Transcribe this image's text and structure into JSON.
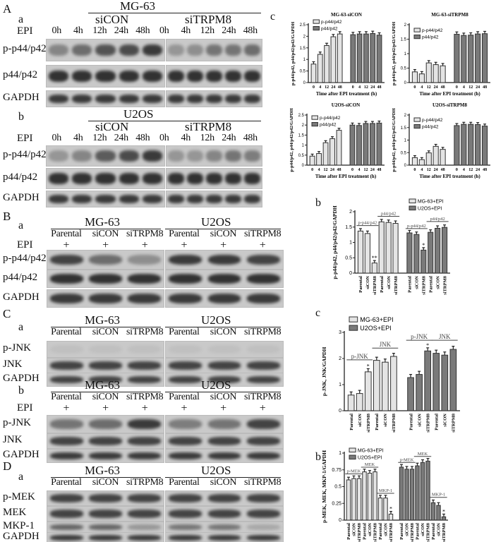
{
  "panels": {
    "A": {
      "letter": "A",
      "sub_a": "a",
      "sub_b": "b",
      "sub_c": "c",
      "a": {
        "cell": "MG-63",
        "group1": "siCON",
        "group2": "siTRPM8",
        "treat": "EPI",
        "times": [
          "0h",
          "4h",
          "12h",
          "24h",
          "48h",
          "0h",
          "4h",
          "12h",
          "24h",
          "48h"
        ],
        "rows": [
          "p-p44/p42",
          "p44/p42",
          "GAPDH"
        ]
      },
      "b": {
        "cell": "U2OS",
        "group1": "siCON",
        "group2": "siTRPM8",
        "treat": "EPI",
        "times": [
          "0h",
          "4h",
          "12h",
          "24h",
          "48h",
          "0h",
          "4h",
          "12h",
          "24h",
          "48h"
        ],
        "rows": [
          "p-p44/p42",
          "p44/p42",
          "GAPDH"
        ]
      }
    },
    "B": {
      "letter": "B",
      "sub_a": "a",
      "sub_b": "b",
      "cells": [
        "MG-63",
        "U2OS"
      ],
      "lanes": [
        "Parental",
        "siCON",
        "siTRPM8",
        "Parental",
        "siCON",
        "siTRPM8"
      ],
      "treat": "EPI",
      "plus": [
        "+",
        "+",
        "+",
        "+",
        "+",
        "+"
      ],
      "rows": [
        "p-p44/p42",
        "p44/p42",
        "GAPDH"
      ]
    },
    "C": {
      "letter": "C",
      "sub_a": "a",
      "sub_b": "b",
      "sub_c": "c",
      "cells": [
        "MG-63",
        "U2OS"
      ],
      "lanes": [
        "Parental",
        "siCON",
        "siTRPM8",
        "Parental",
        "siCON",
        "siTRPM8"
      ],
      "treat": "EPI",
      "plus": [
        "+",
        "+",
        "+",
        "+",
        "+",
        "+"
      ],
      "rows": [
        "p-JNK",
        "JNK",
        "GAPDH"
      ]
    },
    "D": {
      "letter": "D",
      "sub_a": "a",
      "sub_b": "b",
      "cells": [
        "MG-63",
        "U2OS"
      ],
      "lanes": [
        "Parental",
        "siCON",
        "siTRPM8",
        "Parental",
        "siCON",
        "siTRPM8"
      ],
      "rows": [
        "p-MEK",
        "MEK",
        "MKP-1",
        "GAPDH"
      ]
    }
  },
  "chart_data": [
    {
      "id": "Ac1",
      "type": "bar",
      "title": "MG-63-siCON",
      "xlabel": "Time after EPI treatment (h)",
      "ylabel": "p-p44/p42, p44/p42/p42/GAPDH",
      "ylim": [
        0,
        2.5
      ],
      "yticks": [
        0,
        0.5,
        1.0,
        1.5,
        2.0,
        2.5
      ],
      "categories": [
        "0",
        "4",
        "12",
        "24",
        "48"
      ],
      "legend_position": "top-left",
      "series": [
        {
          "name": "p-p44/p42",
          "color": "#e4e4e4",
          "values": [
            0.8,
            1.22,
            1.6,
            1.98,
            2.1
          ]
        },
        {
          "name": "p44/p42",
          "color": "#7a7a7a",
          "values": [
            2.07,
            2.1,
            2.1,
            2.12,
            2.05
          ]
        }
      ]
    },
    {
      "id": "Ac2",
      "type": "bar",
      "title": "MG-63-siTRPM8",
      "xlabel": "Time after EPI treatment (h)",
      "ylabel": "p-p44/p42, p44/p42/p42/GAPDH",
      "ylim": [
        0,
        2.0
      ],
      "yticks": [
        0,
        0.5,
        1.0,
        1.5,
        2.0
      ],
      "categories": [
        "0",
        "4",
        "12",
        "24",
        "48"
      ],
      "legend_position": "top-left",
      "series": [
        {
          "name": "p-p44/p42",
          "color": "#e4e4e4",
          "values": [
            0.37,
            0.3,
            0.68,
            0.62,
            0.58
          ]
        },
        {
          "name": "p44/p42",
          "color": "#7a7a7a",
          "values": [
            1.67,
            1.63,
            1.64,
            1.68,
            1.69
          ]
        }
      ]
    },
    {
      "id": "Ac3",
      "type": "bar",
      "title": "U2OS-siCON",
      "xlabel": "Time after EPI treatment (h)",
      "ylabel": "p-p44/p42, p44/p42/p42/GAPDH",
      "ylim": [
        0,
        2.5
      ],
      "yticks": [
        0,
        0.5,
        1.0,
        1.5,
        2.0,
        2.5
      ],
      "categories": [
        "0",
        "4",
        "12",
        "24",
        "48"
      ],
      "legend_position": "top-left",
      "series": [
        {
          "name": "p-p44/p42",
          "color": "#e4e4e4",
          "values": [
            0.45,
            0.58,
            1.12,
            1.32,
            1.74
          ]
        },
        {
          "name": "p44/p42",
          "color": "#7a7a7a",
          "values": [
            2.0,
            1.98,
            2.08,
            2.08,
            2.1
          ]
        }
      ]
    },
    {
      "id": "Ac4",
      "type": "bar",
      "title": "U2OS-siTRPM8",
      "xlabel": "Time after EPI treatment (h)",
      "ylabel": "p-p44/p42, p44/p42/p42/GAPDH",
      "ylim": [
        0,
        2.0
      ],
      "yticks": [
        0,
        0.5,
        1.0,
        1.5,
        2.0
      ],
      "categories": [
        "0",
        "4",
        "12",
        "24",
        "48"
      ],
      "legend_position": "top-left",
      "series": [
        {
          "name": "p-p44/p42",
          "color": "#e4e4e4",
          "values": [
            0.3,
            0.22,
            0.49,
            0.75,
            0.63
          ]
        },
        {
          "name": "p44/p42",
          "color": "#7a7a7a",
          "values": [
            1.58,
            1.63,
            1.63,
            1.62,
            1.56
          ]
        }
      ]
    },
    {
      "id": "Bb",
      "type": "bar",
      "title": "",
      "xlabel": "",
      "ylabel": "p-p44/p42, p44/p42/p42/GAPDH",
      "ylim": [
        0,
        2.0
      ],
      "yticks": [
        0,
        0.5,
        1.0,
        1.5,
        2.0
      ],
      "categories": [
        "Parental",
        "siCON",
        "siTRPM8",
        "Parental",
        "siCON",
        "siTRPM8"
      ],
      "legend_position": "top-right",
      "series": [
        {
          "name": "MG-63+EPI",
          "color": "#e4e4e4",
          "values": [
            1.37,
            1.29,
            0.33,
            1.67,
            1.65,
            1.62
          ]
        },
        {
          "name": "U2OS+EPI",
          "color": "#7a7a7a",
          "values": [
            1.31,
            1.26,
            0.75,
            1.33,
            1.46,
            1.49
          ]
        }
      ],
      "groups": [
        {
          "series": 0,
          "from": 0,
          "to": 2,
          "label": "p-p44/p42",
          "y": 1.55
        },
        {
          "series": 0,
          "from": 3,
          "to": 5,
          "label": "p44/p42",
          "y": 1.85
        },
        {
          "series": 1,
          "from": 0,
          "to": 2,
          "label": "p-p44/p42",
          "y": 1.45
        },
        {
          "series": 1,
          "from": 3,
          "to": 5,
          "label": "p44/p42",
          "y": 1.68
        }
      ],
      "marks": [
        {
          "series": 0,
          "index": 2,
          "text": "**"
        },
        {
          "series": 1,
          "index": 2,
          "text": "*"
        }
      ]
    },
    {
      "id": "Cc",
      "type": "bar",
      "title": "",
      "xlabel": "",
      "ylabel": "p-JNK, JNK/GAPDH",
      "ylim": [
        0,
        3
      ],
      "yticks": [
        0,
        1,
        2,
        3
      ],
      "categories": [
        "Parental",
        "siCON",
        "siTRPM8",
        "Parental",
        "siCON",
        "siTRPM8"
      ],
      "legend_position": "top-left",
      "series": [
        {
          "name": "MG-63+EPI",
          "color": "#e4e4e4",
          "values": [
            0.6,
            0.66,
            1.49,
            1.93,
            1.86,
            2.08
          ]
        },
        {
          "name": "U2OS+EPI",
          "color": "#7a7a7a",
          "values": [
            1.27,
            1.39,
            2.29,
            2.2,
            2.13,
            2.35
          ]
        }
      ],
      "groups": [
        {
          "series": 0,
          "from": 0,
          "to": 2,
          "label": "p-JNK",
          "y": 1.95
        },
        {
          "series": 0,
          "from": 3,
          "to": 5,
          "label": "JNK",
          "y": 2.4
        },
        {
          "series": 1,
          "from": 0,
          "to": 2,
          "label": "p-JNK",
          "y": 2.7
        },
        {
          "series": 1,
          "from": 3,
          "to": 5,
          "label": "JNK",
          "y": 2.7
        }
      ],
      "marks": [
        {
          "series": 0,
          "index": 2,
          "text": "*"
        },
        {
          "series": 1,
          "index": 2,
          "text": "*"
        }
      ]
    },
    {
      "id": "Db",
      "type": "bar",
      "title": "",
      "xlabel": "",
      "ylabel": "p-MEK, MEK, MKP-1/GAPDH",
      "ylim": [
        0,
        1.0
      ],
      "yticks": [
        0,
        0.25,
        0.5,
        0.75,
        1.0
      ],
      "categories": [
        "Parental",
        "siCON",
        "siTRPM8",
        "Parental",
        "siCON",
        "siTRPM8",
        "Parental",
        "siCON",
        "siTRPM8"
      ],
      "legend_position": "top-left",
      "series": [
        {
          "name": "MG-63+EPI",
          "color": "#e4e4e4",
          "values": [
            0.6,
            0.62,
            0.62,
            0.72,
            0.7,
            0.72,
            0.33,
            0.33,
            0.09
          ]
        },
        {
          "name": "U2OS+EPI",
          "color": "#7a7a7a",
          "values": [
            0.79,
            0.76,
            0.76,
            0.81,
            0.86,
            0.88,
            0.26,
            0.22,
            0.05
          ]
        }
      ],
      "groups": [
        {
          "series": 0,
          "from": 0,
          "to": 2,
          "label": "p-MEK",
          "y": 0.69
        },
        {
          "series": 0,
          "from": 3,
          "to": 5,
          "label": "MEK",
          "y": 0.79
        },
        {
          "series": 0,
          "from": 6,
          "to": 8,
          "label": "MKP-1",
          "y": 0.4
        },
        {
          "series": 1,
          "from": 0,
          "to": 2,
          "label": "p-MEK",
          "y": 0.86
        },
        {
          "series": 1,
          "from": 3,
          "to": 5,
          "label": "MEK",
          "y": 0.95
        },
        {
          "series": 1,
          "from": 6,
          "to": 8,
          "label": "MKP-1",
          "y": 0.34
        }
      ],
      "marks": [
        {
          "series": 0,
          "index": 8,
          "text": "*"
        },
        {
          "series": 1,
          "index": 8,
          "text": "*"
        }
      ]
    }
  ]
}
